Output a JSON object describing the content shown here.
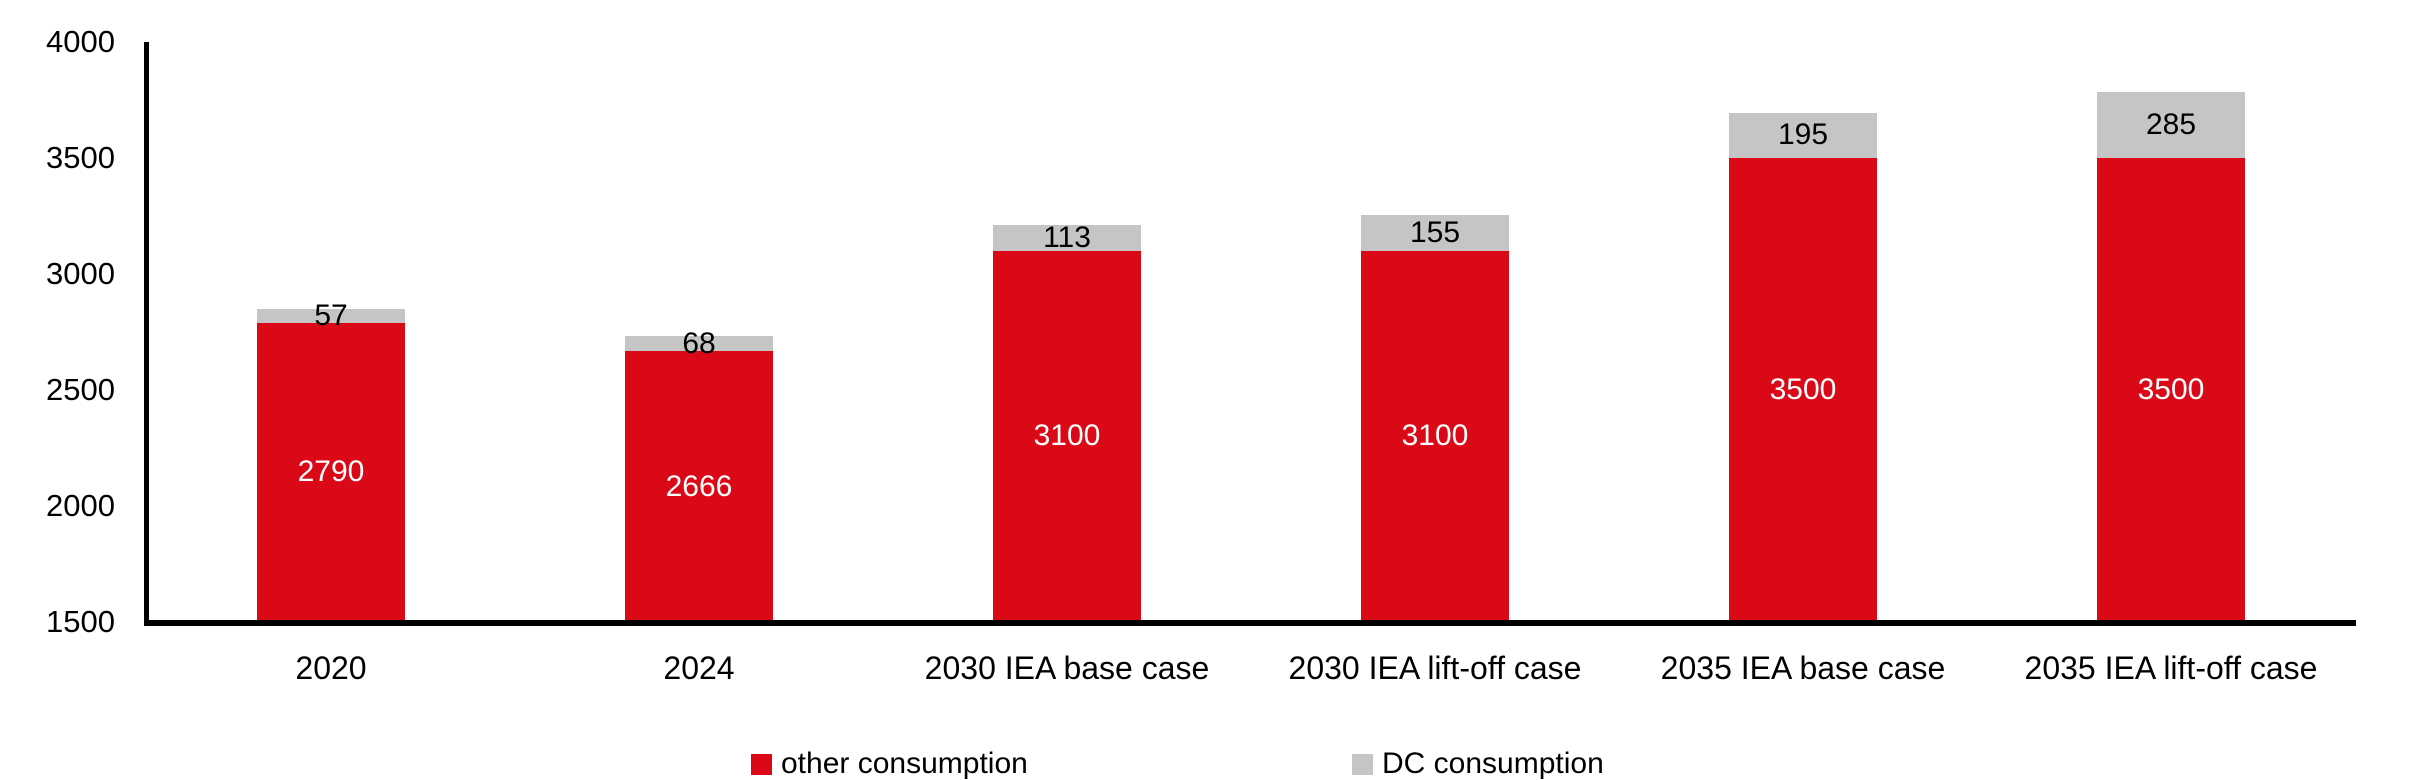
{
  "chart_data": {
    "type": "bar",
    "stacked": true,
    "title": "",
    "xlabel": "",
    "ylabel": "",
    "categories": [
      "2020",
      "2024",
      "2030 IEA base case",
      "2030 IEA lift-off case",
      "2035 IEA base case",
      "2035 IEA lift-off case"
    ],
    "series": [
      {
        "name": "other consumption",
        "color": "#DB0817",
        "label_color": "#FFFFFF",
        "values": [
          2790,
          2666,
          3100,
          3100,
          3500,
          3500
        ]
      },
      {
        "name": "DC consumption",
        "color": "#C5C5C5",
        "label_color": "#000000",
        "values": [
          57,
          68,
          113,
          155,
          195,
          285
        ]
      }
    ],
    "bar_labels": {
      "other_consumption": [
        "2790",
        "2666",
        "3100",
        "3100",
        "3500",
        "3500"
      ],
      "dc_consumption": [
        "57",
        "68",
        "113",
        "155",
        "195",
        "285"
      ]
    },
    "ylim": [
      1500,
      4000
    ],
    "yticks": [
      "1500",
      "2000",
      "2500",
      "3000",
      "3500",
      "4000"
    ],
    "grid": false,
    "legend_position": "bottom",
    "axis_color": "#000000",
    "background_color": "#FFFFFF"
  }
}
